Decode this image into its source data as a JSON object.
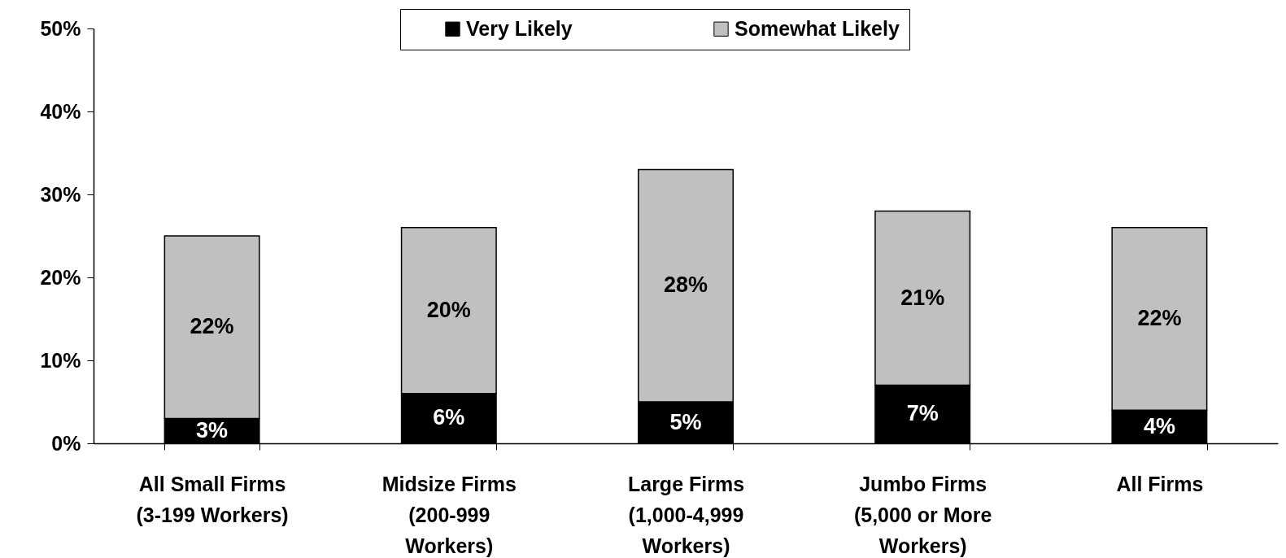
{
  "chart_data": {
    "type": "bar",
    "stacked": true,
    "categories": [
      "All Small Firms (3-199 Workers)",
      "Midsize Firms (200-999 Workers)",
      "Large Firms (1,000-4,999 Workers)",
      "Jumbo Firms (5,000 or More Workers)",
      "All Firms"
    ],
    "series": [
      {
        "name": "Very Likely",
        "color": "#000000",
        "values": [
          3,
          6,
          5,
          7,
          4
        ],
        "value_labels": [
          "3%",
          "6%",
          "5%",
          "7%",
          "4%"
        ]
      },
      {
        "name": "Somewhat Likely",
        "color": "#c0c0c0",
        "values": [
          22,
          20,
          28,
          21,
          22
        ],
        "value_labels": [
          "22%",
          "20%",
          "28%",
          "21%",
          "22%"
        ]
      }
    ],
    "ylim": [
      0,
      50
    ],
    "yticks": [
      {
        "value": 0,
        "label": "0%"
      },
      {
        "value": 10,
        "label": "10%"
      },
      {
        "value": 20,
        "label": "20%"
      },
      {
        "value": 30,
        "label": "30%"
      },
      {
        "value": 40,
        "label": "40%"
      },
      {
        "value": 50,
        "label": "50%"
      }
    ],
    "legend": "top"
  }
}
